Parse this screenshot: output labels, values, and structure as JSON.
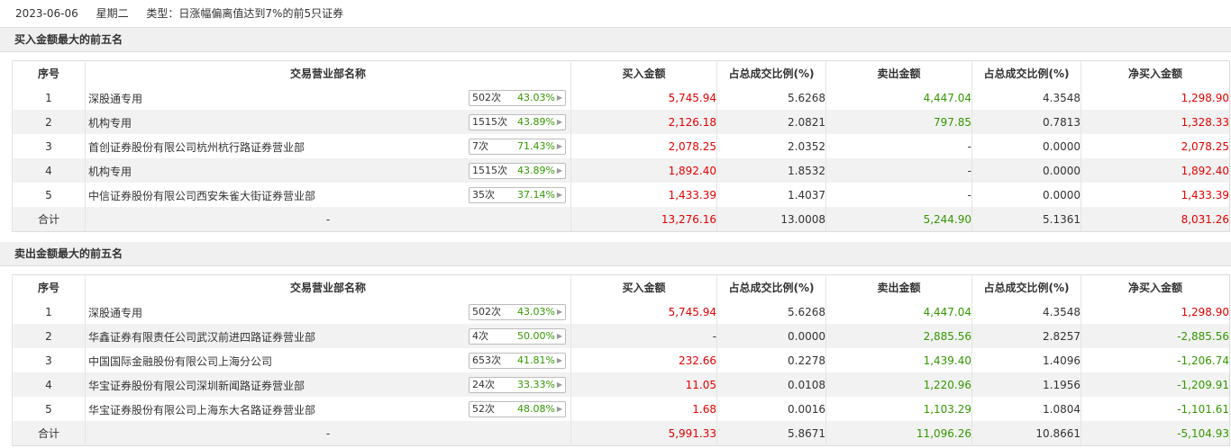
{
  "header": {
    "date": "2023-06-06",
    "weekday": "星期二",
    "type_label": "类型：日涨幅偏离值达到7%的前5只证券"
  },
  "columns": [
    "序号",
    "交易营业部名称",
    "买入金额",
    "占总成交比例(%)",
    "卖出金额",
    "占总成交比例(%)",
    "净买入金额"
  ],
  "buy_section": {
    "title": "买入金额最大的前五名",
    "rows": [
      {
        "idx": "1",
        "name": "深股通专用",
        "count": "502次",
        "pct": "43.03%",
        "buy": "5,745.94",
        "buy_ratio": "5.6268",
        "sell": "4,447.04",
        "sell_ratio": "4.3548",
        "net": "1,298.90"
      },
      {
        "idx": "2",
        "name": "机构专用",
        "count": "1515次",
        "pct": "43.89%",
        "buy": "2,126.18",
        "buy_ratio": "2.0821",
        "sell": "797.85",
        "sell_ratio": "0.7813",
        "net": "1,328.33"
      },
      {
        "idx": "3",
        "name": "首创证券股份有限公司杭州杭行路证券营业部",
        "count": "7次",
        "pct": "71.43%",
        "buy": "2,078.25",
        "buy_ratio": "2.0352",
        "sell": "-",
        "sell_ratio": "0.0000",
        "net": "2,078.25"
      },
      {
        "idx": "4",
        "name": "机构专用",
        "count": "1515次",
        "pct": "43.89%",
        "buy": "1,892.40",
        "buy_ratio": "1.8532",
        "sell": "-",
        "sell_ratio": "0.0000",
        "net": "1,892.40"
      },
      {
        "idx": "5",
        "name": "中信证券股份有限公司西安朱雀大街证券营业部",
        "count": "35次",
        "pct": "37.14%",
        "buy": "1,433.39",
        "buy_ratio": "1.4037",
        "sell": "-",
        "sell_ratio": "0.0000",
        "net": "1,433.39"
      }
    ],
    "total": {
      "label": "合计",
      "name": "-",
      "buy": "13,276.16",
      "buy_ratio": "13.0008",
      "sell": "5,244.90",
      "sell_ratio": "5.1361",
      "net": "8,031.26"
    }
  },
  "sell_section": {
    "title": "卖出金额最大的前五名",
    "rows": [
      {
        "idx": "1",
        "name": "深股通专用",
        "count": "502次",
        "pct": "43.03%",
        "buy": "5,745.94",
        "buy_ratio": "5.6268",
        "sell": "4,447.04",
        "sell_ratio": "4.3548",
        "net": "1,298.90"
      },
      {
        "idx": "2",
        "name": "华鑫证券有限责任公司武汉前进四路证券营业部",
        "count": "4次",
        "pct": "50.00%",
        "buy": "-",
        "buy_ratio": "0.0000",
        "sell": "2,885.56",
        "sell_ratio": "2.8257",
        "net": "-2,885.56"
      },
      {
        "idx": "3",
        "name": "中国国际金融股份有限公司上海分公司",
        "count": "653次",
        "pct": "41.81%",
        "buy": "232.66",
        "buy_ratio": "0.2278",
        "sell": "1,439.40",
        "sell_ratio": "1.4096",
        "net": "-1,206.74"
      },
      {
        "idx": "4",
        "name": "华宝证券股份有限公司深圳新闻路证券营业部",
        "count": "24次",
        "pct": "33.33%",
        "buy": "11.05",
        "buy_ratio": "0.0108",
        "sell": "1,220.96",
        "sell_ratio": "1.1956",
        "net": "-1,209.91"
      },
      {
        "idx": "5",
        "name": "华宝证券股份有限公司上海东大名路证券营业部",
        "count": "52次",
        "pct": "48.08%",
        "buy": "1.68",
        "buy_ratio": "0.0016",
        "sell": "1,103.29",
        "sell_ratio": "1.0804",
        "net": "-1,101.61"
      }
    ],
    "total": {
      "label": "合计",
      "name": "-",
      "buy": "5,991.33",
      "buy_ratio": "5.8671",
      "sell": "11,096.26",
      "sell_ratio": "10.8661",
      "net": "-5,104.93"
    }
  },
  "colors": {
    "buy": "#e60000",
    "sell": "#339900",
    "net_positive": "#e60000",
    "net_negative": "#339900",
    "pill_pct": "#339900"
  },
  "icons": {
    "pill_arrow": "caret-right-icon"
  }
}
